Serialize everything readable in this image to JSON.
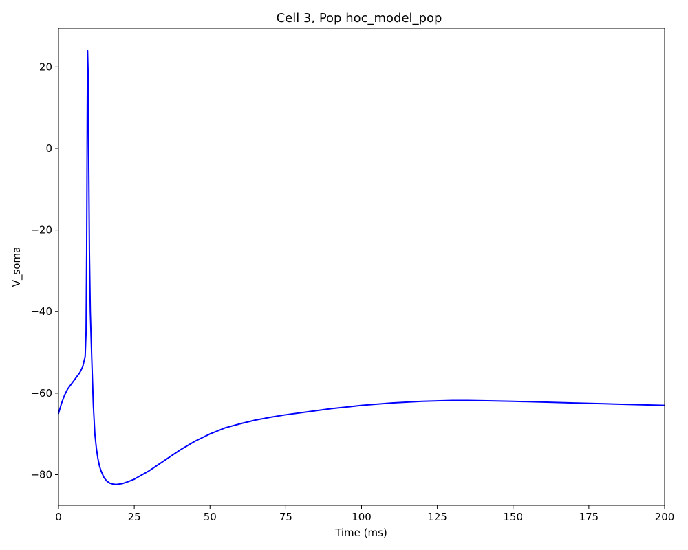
{
  "chart_data": {
    "type": "line",
    "title": "Cell 3, Pop hoc_model_pop",
    "xlabel": "Time (ms)",
    "ylabel": "V_soma",
    "xlim": [
      0,
      200
    ],
    "ylim": [
      -87.5,
      29.5
    ],
    "x_ticks": [
      0,
      25,
      50,
      75,
      100,
      125,
      150,
      175,
      200
    ],
    "y_ticks": [
      -80,
      -60,
      -40,
      -20,
      0,
      20
    ],
    "x_tick_labels": [
      "0",
      "25",
      "50",
      "75",
      "100",
      "125",
      "150",
      "175",
      "200"
    ],
    "y_tick_labels": [
      "−80",
      "−60",
      "−40",
      "−20",
      "0",
      "20"
    ],
    "grid": false,
    "series": [
      {
        "color": "#0000ff",
        "x": [
          0,
          1,
          2,
          3,
          4,
          5,
          6,
          7,
          8,
          8.8,
          9.1,
          9.3,
          9.5,
          9.6,
          9.8,
          10.0,
          10.2,
          10.5,
          11,
          11.5,
          12,
          12.5,
          13,
          13.5,
          14,
          15,
          16,
          17,
          18,
          19,
          20,
          21,
          23,
          25,
          30,
          35,
          40,
          45,
          50,
          55,
          60,
          65,
          70,
          75,
          80,
          90,
          100,
          110,
          120,
          130,
          135,
          140,
          150,
          160,
          170,
          180,
          190,
          200
        ],
        "y": [
          -65,
          -62.5,
          -60.5,
          -59,
          -58,
          -57,
          -56,
          -55,
          -53.5,
          -51,
          -45,
          -25,
          10,
          24,
          18,
          -5,
          -25,
          -40,
          -52,
          -63,
          -70,
          -73.5,
          -76,
          -77.8,
          -79,
          -80.7,
          -81.6,
          -82.1,
          -82.3,
          -82.4,
          -82.3,
          -82.2,
          -81.7,
          -81.1,
          -79,
          -76.5,
          -74,
          -71.8,
          -70,
          -68.5,
          -67.5,
          -66.6,
          -65.9,
          -65.3,
          -64.8,
          -63.8,
          -63,
          -62.4,
          -62,
          -61.8,
          -61.8,
          -61.85,
          -62,
          -62.2,
          -62.4,
          -62.6,
          -62.8,
          -63
        ]
      }
    ]
  }
}
